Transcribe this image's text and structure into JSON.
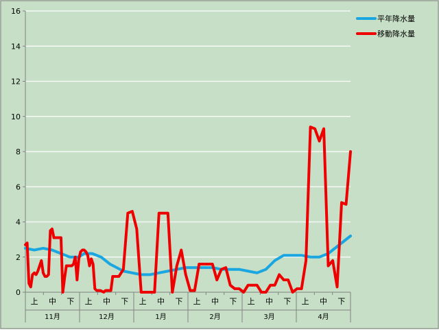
{
  "chart_data": {
    "type": "line",
    "ylim": [
      0,
      16
    ],
    "yticks": [
      0,
      2,
      4,
      6,
      8,
      10,
      12,
      14,
      16
    ],
    "grid": true,
    "legend_position": "top-right",
    "xaxis": {
      "dekad_labels": [
        "上",
        "中",
        "下"
      ],
      "months": [
        "11月",
        "12月",
        "1月",
        "2月",
        "3月",
        "4月"
      ]
    },
    "colors": {
      "background": "#c6dfc6",
      "grid": "#ffffff",
      "normal": "#1aa7e1",
      "moving": "#ee0000"
    },
    "series": [
      {
        "name": "平年降水量",
        "x": [
          0,
          10,
          20,
          30,
          40,
          50,
          60,
          66,
          75,
          85,
          95,
          110,
          120,
          130,
          140,
          150,
          160,
          170,
          180,
          190,
          200,
          210,
          220,
          230,
          240,
          250,
          260,
          270,
          280,
          290,
          300,
          310,
          320,
          330,
          340,
          350,
          360,
          365
        ],
        "y": [
          2.5,
          2.4,
          2.5,
          2.4,
          2.2,
          2.0,
          2.0,
          2.2,
          2.2,
          2.0,
          1.6,
          1.2,
          1.1,
          1.0,
          1.0,
          1.1,
          1.2,
          1.3,
          1.4,
          1.4,
          1.4,
          1.4,
          1.3,
          1.3,
          1.3,
          1.2,
          1.1,
          1.3,
          1.8,
          2.1,
          2.1,
          2.1,
          2.0,
          2.0,
          2.2,
          2.6,
          3.0,
          3.2
        ]
      },
      {
        "name": "移動降水量",
        "x": [
          0,
          2,
          4,
          6,
          8,
          10,
          12,
          14,
          16,
          18,
          20,
          22,
          24,
          26,
          28,
          30,
          32,
          34,
          36,
          38,
          40,
          42,
          44,
          46,
          48,
          50,
          52,
          54,
          56,
          58,
          60,
          62,
          64,
          66,
          68,
          70,
          72,
          74,
          76,
          78,
          80,
          82,
          84,
          86,
          88,
          90,
          92,
          94,
          96,
          98,
          100,
          105,
          110,
          115,
          120,
          125,
          130,
          135,
          140,
          145,
          150,
          155,
          160,
          165,
          170,
          175,
          180,
          185,
          190,
          195,
          200,
          205,
          210,
          215,
          220,
          225,
          230,
          235,
          240,
          245,
          250,
          255,
          260,
          265,
          270,
          275,
          280,
          285,
          290,
          295,
          300,
          305,
          310,
          315,
          320,
          325,
          330,
          335,
          340,
          345,
          350,
          355,
          360,
          365
        ],
        "y": [
          2.7,
          2.8,
          0.5,
          0.3,
          1.0,
          1.1,
          1.0,
          1.2,
          1.5,
          1.8,
          1.1,
          0.9,
          0.9,
          1.0,
          3.5,
          3.6,
          3.1,
          3.1,
          3.1,
          3.1,
          3.1,
          0.0,
          0.8,
          1.5,
          1.5,
          1.5,
          1.5,
          1.6,
          2.0,
          0.7,
          1.9,
          2.3,
          2.4,
          2.4,
          2.3,
          2.1,
          1.5,
          1.9,
          1.6,
          0.2,
          0.1,
          0.1,
          0.1,
          0.05,
          0.0,
          0.1,
          0.1,
          0.1,
          0.1,
          0.9,
          0.9,
          0.9,
          1.3,
          4.5,
          4.6,
          3.6,
          0.0,
          0.0,
          0.0,
          0.0,
          4.5,
          4.5,
          4.5,
          0.0,
          1.5,
          2.4,
          1.0,
          0.1,
          0.1,
          1.6,
          1.6,
          1.6,
          1.6,
          0.7,
          1.3,
          1.4,
          0.4,
          0.2,
          0.2,
          0.0,
          0.4,
          0.4,
          0.4,
          0.0,
          0.0,
          0.4,
          0.4,
          1.0,
          0.7,
          0.7,
          0.0,
          0.2,
          0.2,
          1.8,
          9.4,
          9.3,
          8.6,
          9.3,
          1.5,
          1.8,
          0.3,
          5.1,
          5.0,
          8.0
        ]
      }
    ]
  }
}
